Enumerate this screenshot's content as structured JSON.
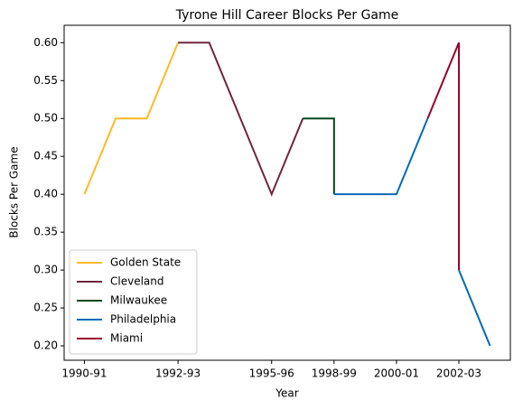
{
  "chart_data": {
    "type": "line",
    "title": "Tyrone Hill Career Blocks Per Game",
    "xlabel": "Year",
    "ylabel": "Blocks Per Game",
    "xlim": [
      -0.65,
      13.65
    ],
    "xticks": [
      {
        "value": 0,
        "label": "1990-91"
      },
      {
        "value": 3,
        "label": "1992-93"
      },
      {
        "value": 6,
        "label": "1995-96"
      },
      {
        "value": 8,
        "label": "1998-99"
      },
      {
        "value": 10,
        "label": "2000-01"
      },
      {
        "value": 12,
        "label": "2002-03"
      }
    ],
    "ylim": [
      0.181,
      0.623
    ],
    "yticks": [
      {
        "value": 0.2,
        "label": "0.20"
      },
      {
        "value": 0.25,
        "label": "0.25"
      },
      {
        "value": 0.3,
        "label": "0.30"
      },
      {
        "value": 0.35,
        "label": "0.35"
      },
      {
        "value": 0.4,
        "label": "0.40"
      },
      {
        "value": 0.45,
        "label": "0.45"
      },
      {
        "value": 0.5,
        "label": "0.50"
      },
      {
        "value": 0.55,
        "label": "0.55"
      },
      {
        "value": 0.6,
        "label": "0.60"
      }
    ],
    "legend": "lower left",
    "series": [
      {
        "name": "Golden State",
        "color": "#fdb927",
        "x": [
          0,
          1,
          2,
          3
        ],
        "values": [
          0.4,
          0.5,
          0.5,
          0.6
        ]
      },
      {
        "name": "Cleveland",
        "color": "#6f263d",
        "x": [
          3,
          4,
          5,
          6,
          7
        ],
        "values": [
          0.6,
          0.6,
          0.5,
          0.4,
          0.5
        ]
      },
      {
        "name": "Milwaukee",
        "color": "#00471b",
        "x": [
          7,
          8,
          8
        ],
        "values": [
          0.5,
          0.5,
          0.4
        ]
      },
      {
        "name": "Philadelphia",
        "color": "#006bb6",
        "x": [
          8,
          9,
          10,
          11,
          12,
          12,
          13
        ],
        "values": [
          0.4,
          0.4,
          0.4,
          0.5,
          null,
          0.3,
          0.2
        ]
      },
      {
        "name": "Miami",
        "color": "#98002e",
        "x": [
          11,
          12,
          12
        ],
        "values": [
          0.5,
          0.6,
          0.3
        ]
      }
    ]
  }
}
